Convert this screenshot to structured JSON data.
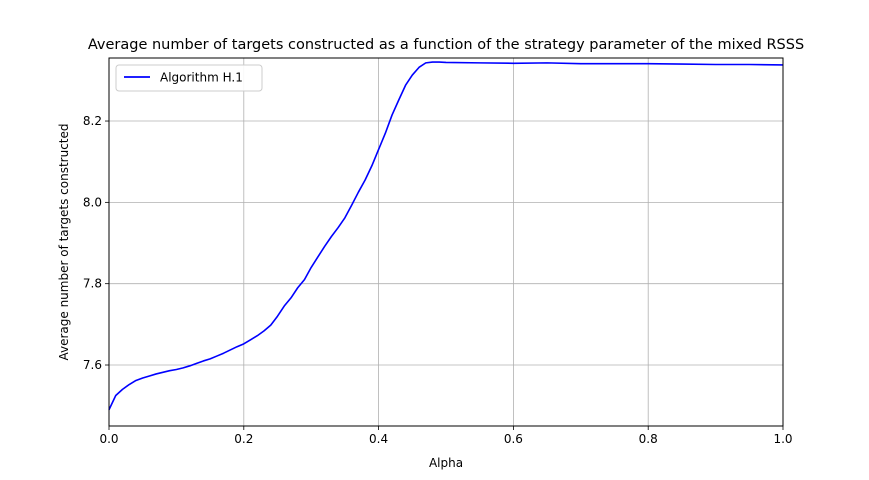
{
  "chart_data": {
    "type": "line",
    "title": "Average number of targets constructed as a function of the strategy parameter of the mixed RSSS",
    "xlabel": "Alpha",
    "ylabel": "Average number of targets constructed",
    "xlim": [
      0.0,
      1.0
    ],
    "ylim": [
      7.45,
      8.355
    ],
    "grid": true,
    "legend_position": "top-left",
    "x_ticks": [
      "0.0",
      "0.2",
      "0.4",
      "0.6",
      "0.8",
      "1.0"
    ],
    "y_ticks": [
      "7.6",
      "7.8",
      "8.0",
      "8.2"
    ],
    "series": [
      {
        "name": "Algorithm H.1",
        "color": "#0000ff",
        "x": [
          0.0,
          0.01,
          0.02,
          0.03,
          0.04,
          0.05,
          0.06,
          0.07,
          0.08,
          0.09,
          0.1,
          0.11,
          0.12,
          0.13,
          0.14,
          0.15,
          0.16,
          0.17,
          0.18,
          0.19,
          0.2,
          0.21,
          0.22,
          0.23,
          0.24,
          0.25,
          0.26,
          0.27,
          0.28,
          0.29,
          0.3,
          0.31,
          0.32,
          0.33,
          0.34,
          0.35,
          0.36,
          0.37,
          0.38,
          0.39,
          0.4,
          0.41,
          0.42,
          0.43,
          0.44,
          0.45,
          0.46,
          0.47,
          0.48,
          0.49,
          0.5,
          0.55,
          0.6,
          0.65,
          0.7,
          0.75,
          0.8,
          0.85,
          0.9,
          0.95,
          1.0
        ],
        "y": [
          7.49,
          7.525,
          7.54,
          7.552,
          7.562,
          7.568,
          7.573,
          7.578,
          7.582,
          7.586,
          7.589,
          7.593,
          7.598,
          7.604,
          7.61,
          7.615,
          7.622,
          7.629,
          7.637,
          7.645,
          7.652,
          7.662,
          7.672,
          7.684,
          7.698,
          7.72,
          7.745,
          7.765,
          7.79,
          7.81,
          7.84,
          7.866,
          7.892,
          7.916,
          7.938,
          7.962,
          7.993,
          8.025,
          8.055,
          8.09,
          8.13,
          8.17,
          8.215,
          8.252,
          8.288,
          8.313,
          8.332,
          8.343,
          8.345,
          8.345,
          8.344,
          8.343,
          8.342,
          8.343,
          8.341,
          8.341,
          8.341,
          8.34,
          8.339,
          8.339,
          8.338
        ]
      }
    ]
  }
}
